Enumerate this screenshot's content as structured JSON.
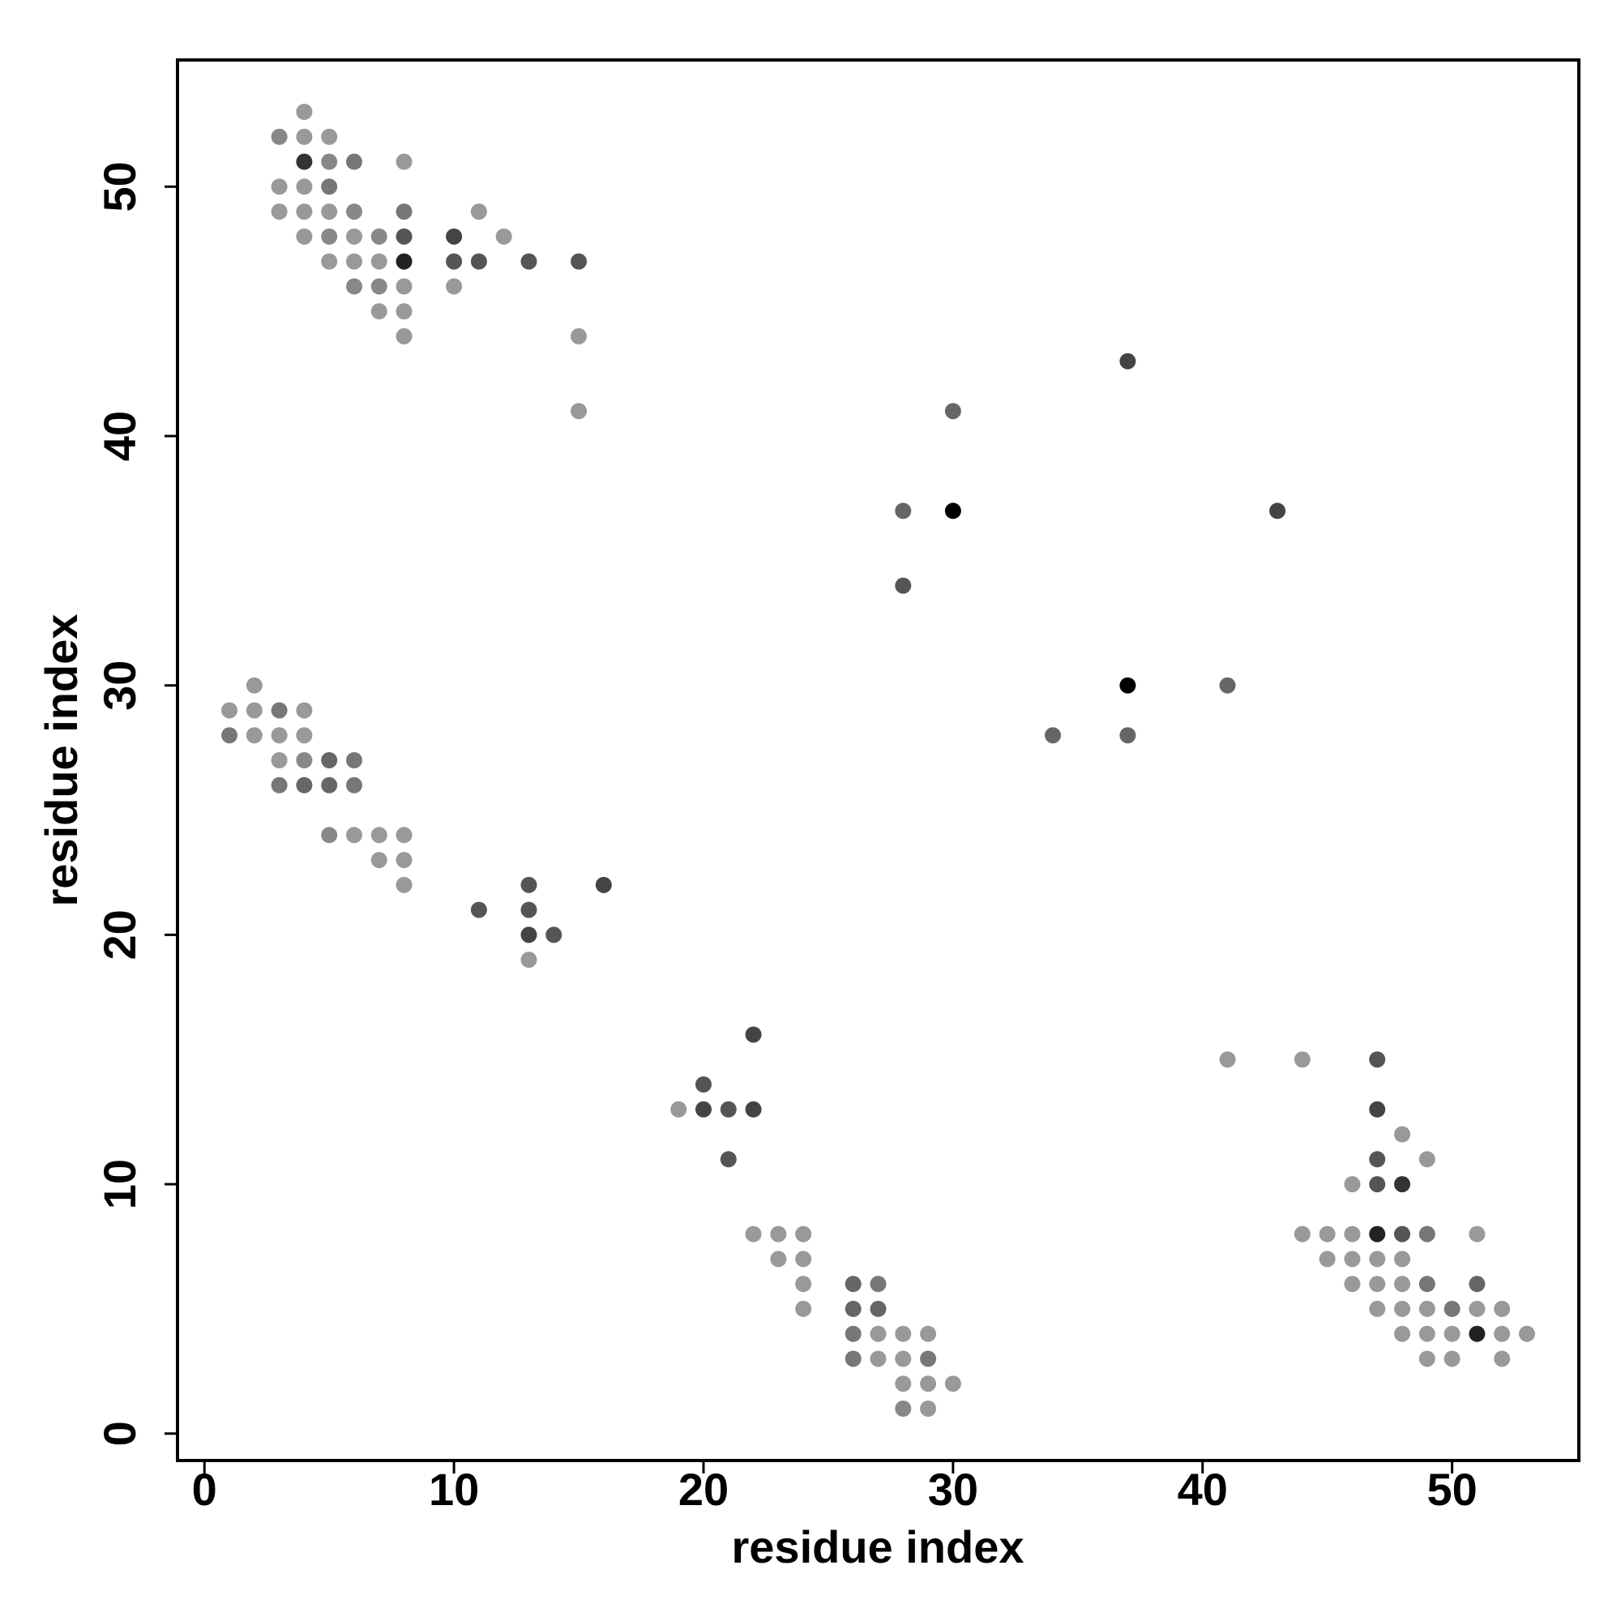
{
  "chart_data": {
    "type": "scatter",
    "x_label": "residue index",
    "y_label": "residue index",
    "xlim": [
      -1.08,
      55.08
    ],
    "ylim": [
      -1.08,
      55.08
    ],
    "xticks": [
      0,
      10,
      20,
      30,
      40,
      50
    ],
    "yticks": [
      0,
      10,
      20,
      30,
      40,
      50
    ],
    "grid": false,
    "x": [
      4,
      3,
      4,
      5,
      4,
      5,
      6,
      8,
      3,
      4,
      5,
      3,
      4,
      5,
      6,
      8,
      11,
      4,
      5,
      6,
      7,
      8,
      10,
      12,
      5,
      6,
      7,
      8,
      10,
      11,
      13,
      15,
      6,
      7,
      8,
      10,
      7,
      8,
      8,
      15,
      15,
      30,
      37,
      28,
      30,
      43,
      28,
      37,
      41,
      34,
      37,
      2,
      1,
      2,
      3,
      4,
      1,
      2,
      3,
      4,
      3,
      4,
      5,
      6,
      3,
      4,
      5,
      6,
      5,
      6,
      7,
      8,
      7,
      8,
      8,
      13,
      16,
      11,
      13,
      13,
      14,
      13,
      22,
      20,
      19,
      20,
      21,
      22,
      21,
      22,
      23,
      24,
      23,
      24,
      24,
      26,
      27,
      24,
      26,
      27,
      26,
      27,
      28,
      29,
      26,
      27,
      28,
      29,
      28,
      29,
      30,
      28,
      29,
      41,
      44,
      47,
      47,
      48,
      47,
      49,
      46,
      47,
      48,
      44,
      45,
      46,
      47,
      48,
      49,
      51,
      45,
      46,
      47,
      48,
      46,
      47,
      48,
      49,
      51,
      47,
      48,
      49,
      50,
      51,
      52,
      48,
      49,
      50,
      51,
      52,
      53,
      49,
      50,
      52
    ],
    "y": [
      53,
      52,
      52,
      52,
      51,
      51,
      51,
      51,
      50,
      50,
      50,
      49,
      49,
      49,
      49,
      49,
      49,
      48,
      48,
      48,
      48,
      48,
      48,
      48,
      47,
      47,
      47,
      47,
      47,
      47,
      47,
      47,
      46,
      46,
      46,
      46,
      45,
      45,
      44,
      44,
      41,
      41,
      43,
      37,
      37,
      37,
      34,
      30,
      30,
      28,
      28,
      30,
      29,
      29,
      29,
      29,
      28,
      28,
      28,
      28,
      27,
      27,
      27,
      27,
      26,
      26,
      26,
      26,
      24,
      24,
      24,
      24,
      23,
      23,
      22,
      22,
      22,
      21,
      21,
      20,
      20,
      19,
      16,
      14,
      13,
      13,
      13,
      13,
      11,
      8,
      8,
      8,
      7,
      7,
      6,
      6,
      6,
      5,
      5,
      5,
      4,
      4,
      4,
      4,
      3,
      3,
      3,
      3,
      2,
      2,
      2,
      1,
      1,
      15,
      15,
      15,
      13,
      12,
      11,
      11,
      10,
      10,
      10,
      8,
      8,
      8,
      8,
      8,
      8,
      8,
      7,
      7,
      7,
      7,
      6,
      6,
      6,
      6,
      6,
      5,
      5,
      5,
      5,
      5,
      5,
      4,
      4,
      4,
      4,
      4,
      4,
      3,
      3,
      3
    ],
    "colors": [
      "#999999",
      "#888888",
      "#999999",
      "#999999",
      "#333333",
      "#888888",
      "#777777",
      "#999999",
      "#999999",
      "#999999",
      "#777777",
      "#999999",
      "#999999",
      "#999999",
      "#888888",
      "#777777",
      "#999999",
      "#999999",
      "#888888",
      "#999999",
      "#888888",
      "#555555",
      "#444444",
      "#999999",
      "#999999",
      "#999999",
      "#999999",
      "#222222",
      "#555555",
      "#555555",
      "#555555",
      "#555555",
      "#888888",
      "#888888",
      "#999999",
      "#999999",
      "#999999",
      "#999999",
      "#999999",
      "#999999",
      "#999999",
      "#666666",
      "#444444",
      "#666666",
      "#000000",
      "#444444",
      "#555555",
      "#000000",
      "#666666",
      "#666666",
      "#666666",
      "#999999",
      "#999999",
      "#999999",
      "#777777",
      "#999999",
      "#777777",
      "#999999",
      "#999999",
      "#999999",
      "#999999",
      "#888888",
      "#666666",
      "#777777",
      "#777777",
      "#666666",
      "#666666",
      "#777777",
      "#888888",
      "#999999",
      "#999999",
      "#999999",
      "#999999",
      "#999999",
      "#999999",
      "#555555",
      "#444444",
      "#555555",
      "#555555",
      "#444444",
      "#555555",
      "#999999",
      "#444444",
      "#555555",
      "#999999",
      "#444444",
      "#555555",
      "#444444",
      "#555555",
      "#999999",
      "#999999",
      "#999999",
      "#999999",
      "#999999",
      "#999999",
      "#666666",
      "#777777",
      "#999999",
      "#666666",
      "#666666",
      "#777777",
      "#999999",
      "#999999",
      "#999999",
      "#777777",
      "#999999",
      "#999999",
      "#777777",
      "#999999",
      "#999999",
      "#999999",
      "#888888",
      "#999999",
      "#999999",
      "#999999",
      "#555555",
      "#444444",
      "#999999",
      "#555555",
      "#999999",
      "#999999",
      "#555555",
      "#333333",
      "#999999",
      "#999999",
      "#999999",
      "#222222",
      "#555555",
      "#777777",
      "#999999",
      "#999999",
      "#999999",
      "#999999",
      "#999999",
      "#999999",
      "#999999",
      "#999999",
      "#777777",
      "#666666",
      "#999999",
      "#999999",
      "#999999",
      "#777777",
      "#999999",
      "#999999",
      "#999999",
      "#999999",
      "#999999",
      "#222222",
      "#999999",
      "#999999",
      "#999999",
      "#999999",
      "#999999"
    ]
  }
}
